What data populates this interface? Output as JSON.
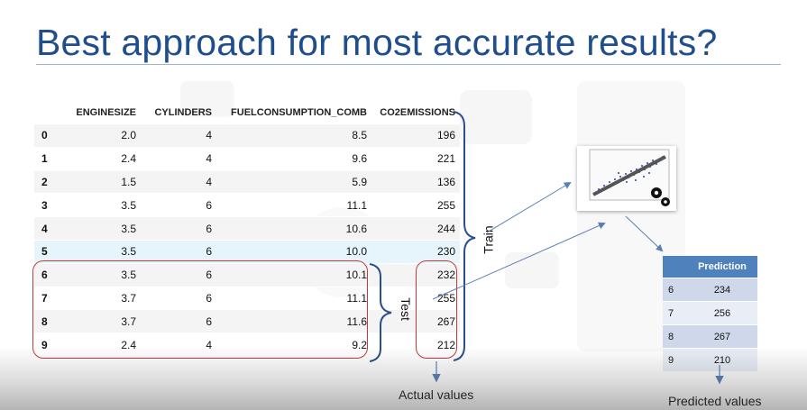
{
  "slide": {
    "title": "Best approach for most accurate results?"
  },
  "dataset": {
    "columns": [
      "",
      "ENGINESIZE",
      "CYLINDERS",
      "FUELCONSUMPTION_COMB",
      "CO2EMISSIONS"
    ],
    "rows": [
      [
        "0",
        "2.0",
        "4",
        "8.5",
        "196"
      ],
      [
        "1",
        "2.4",
        "4",
        "9.6",
        "221"
      ],
      [
        "2",
        "1.5",
        "4",
        "5.9",
        "136"
      ],
      [
        "3",
        "3.5",
        "6",
        "11.1",
        "255"
      ],
      [
        "4",
        "3.5",
        "6",
        "10.6",
        "244"
      ],
      [
        "5",
        "3.5",
        "6",
        "10.0",
        "230"
      ],
      [
        "6",
        "3.5",
        "6",
        "10.1",
        "232"
      ],
      [
        "7",
        "3.7",
        "6",
        "11.1",
        "255"
      ],
      [
        "8",
        "3.7",
        "6",
        "11.6",
        "267"
      ],
      [
        "9",
        "2.4",
        "4",
        "9.2",
        "212"
      ]
    ]
  },
  "labels": {
    "train": "Train",
    "test": "Test",
    "actual_values": "Actual values",
    "predicted_values": "Predicted values"
  },
  "predictions": {
    "header": "Prediction",
    "rows": [
      [
        "6",
        "234"
      ],
      [
        "7",
        "256"
      ],
      [
        "8",
        "267"
      ],
      [
        "9",
        "210"
      ]
    ]
  },
  "colors": {
    "title": "#1f4e8c",
    "test_box": "#c43a3a",
    "arrow": "#5b7fb5",
    "prediction_header": "#4f81bd"
  }
}
